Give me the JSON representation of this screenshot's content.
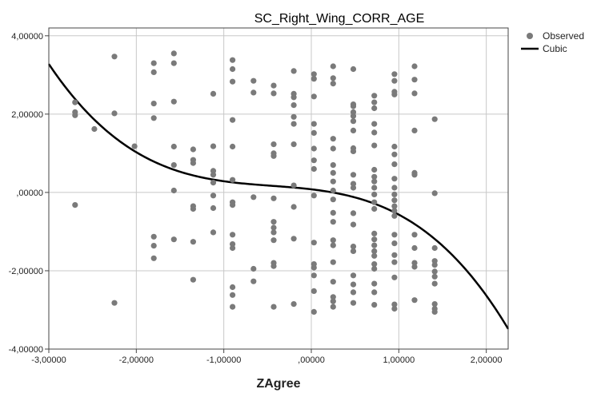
{
  "chart_data": {
    "type": "scatter",
    "title": "SC_Right_Wing_CORR_AGE",
    "xlabel": "ZAgree",
    "ylabel": "",
    "xlim": [
      -3.0,
      2.25
    ],
    "ylim": [
      -4.0,
      4.2
    ],
    "grid": true,
    "legend_position": "top-right",
    "x_ticks": [
      {
        "value": -3,
        "label": "-3,00000"
      },
      {
        "value": -2,
        "label": "-2,00000"
      },
      {
        "value": -1,
        "label": "-1,00000"
      },
      {
        "value": 0,
        "label": ",00000"
      },
      {
        "value": 1,
        "label": "1,00000"
      },
      {
        "value": 2,
        "label": "2,00000"
      }
    ],
    "y_ticks": [
      {
        "value": -4,
        "label": "-4,00000"
      },
      {
        "value": -2,
        "label": "-2,00000"
      },
      {
        "value": 0,
        "label": ",00000"
      },
      {
        "value": 2,
        "label": "2,00000"
      },
      {
        "value": 4,
        "label": "4,00000"
      }
    ],
    "colors": {
      "observed": "#7a7a7a",
      "cubic": "#000000",
      "grid": "#c8c8c8"
    },
    "series": [
      {
        "name": "Observed",
        "kind": "points",
        "points": [
          [
            -2.7,
            2.3
          ],
          [
            -2.7,
            2.05
          ],
          [
            -2.7,
            1.97
          ],
          [
            -2.7,
            -0.32
          ],
          [
            -2.48,
            1.62
          ],
          [
            -2.25,
            3.47
          ],
          [
            -2.25,
            2.02
          ],
          [
            -2.25,
            -2.82
          ],
          [
            -2.02,
            1.18
          ],
          [
            -1.8,
            3.3
          ],
          [
            -1.8,
            3.07
          ],
          [
            -1.8,
            2.27
          ],
          [
            -1.8,
            1.9
          ],
          [
            -1.8,
            -1.13
          ],
          [
            -1.8,
            -1.36
          ],
          [
            -1.8,
            -1.68
          ],
          [
            -1.57,
            3.55
          ],
          [
            -1.57,
            3.3
          ],
          [
            -1.57,
            2.32
          ],
          [
            -1.57,
            1.17
          ],
          [
            -1.57,
            0.7
          ],
          [
            -1.57,
            0.05
          ],
          [
            -1.57,
            -1.2
          ],
          [
            -1.35,
            1.1
          ],
          [
            -1.35,
            0.83
          ],
          [
            -1.35,
            0.75
          ],
          [
            -1.35,
            -0.35
          ],
          [
            -1.35,
            -0.42
          ],
          [
            -1.35,
            -1.26
          ],
          [
            -1.35,
            -2.23
          ],
          [
            -1.12,
            2.52
          ],
          [
            -1.12,
            1.18
          ],
          [
            -1.12,
            0.55
          ],
          [
            -1.12,
            0.45
          ],
          [
            -1.12,
            0.25
          ],
          [
            -1.12,
            -0.08
          ],
          [
            -1.12,
            -0.4
          ],
          [
            -1.12,
            -1.02
          ],
          [
            -0.9,
            3.38
          ],
          [
            -0.9,
            3.15
          ],
          [
            -0.9,
            2.83
          ],
          [
            -0.9,
            1.85
          ],
          [
            -0.9,
            1.17
          ],
          [
            -0.9,
            0.32
          ],
          [
            -0.9,
            -0.25
          ],
          [
            -0.9,
            -0.32
          ],
          [
            -0.9,
            -1.08
          ],
          [
            -0.9,
            -1.32
          ],
          [
            -0.9,
            -1.42
          ],
          [
            -0.9,
            -2.42
          ],
          [
            -0.9,
            -2.62
          ],
          [
            -0.9,
            -2.92
          ],
          [
            -0.66,
            2.85
          ],
          [
            -0.66,
            2.55
          ],
          [
            -0.66,
            -0.12
          ],
          [
            -0.66,
            -1.95
          ],
          [
            -0.66,
            -2.27
          ],
          [
            -0.43,
            2.73
          ],
          [
            -0.43,
            2.53
          ],
          [
            -0.43,
            1.23
          ],
          [
            -0.43,
            1.0
          ],
          [
            -0.43,
            0.93
          ],
          [
            -0.43,
            -0.15
          ],
          [
            -0.43,
            -0.75
          ],
          [
            -0.43,
            -0.9
          ],
          [
            -0.43,
            -1.02
          ],
          [
            -0.43,
            -1.22
          ],
          [
            -0.43,
            -1.8
          ],
          [
            -0.43,
            -1.88
          ],
          [
            -0.43,
            -2.92
          ],
          [
            -0.2,
            3.1
          ],
          [
            -0.2,
            2.52
          ],
          [
            -0.2,
            2.43
          ],
          [
            -0.2,
            2.23
          ],
          [
            -0.2,
            1.93
          ],
          [
            -0.2,
            1.75
          ],
          [
            -0.2,
            1.23
          ],
          [
            -0.2,
            0.18
          ],
          [
            -0.2,
            -0.37
          ],
          [
            -0.2,
            -1.18
          ],
          [
            -0.2,
            -2.85
          ],
          [
            0.03,
            3.02
          ],
          [
            0.03,
            2.9
          ],
          [
            0.03,
            2.45
          ],
          [
            0.03,
            1.75
          ],
          [
            0.03,
            1.52
          ],
          [
            0.03,
            1.12
          ],
          [
            0.03,
            0.82
          ],
          [
            0.03,
            0.6
          ],
          [
            0.03,
            -0.08
          ],
          [
            0.03,
            -1.28
          ],
          [
            0.03,
            -1.83
          ],
          [
            0.03,
            -1.92
          ],
          [
            0.03,
            -2.12
          ],
          [
            0.03,
            -2.52
          ],
          [
            0.03,
            -3.05
          ],
          [
            0.25,
            3.22
          ],
          [
            0.25,
            2.92
          ],
          [
            0.25,
            2.78
          ],
          [
            0.25,
            1.37
          ],
          [
            0.25,
            1.12
          ],
          [
            0.25,
            0.7
          ],
          [
            0.25,
            0.5
          ],
          [
            0.25,
            0.28
          ],
          [
            0.25,
            0.05
          ],
          [
            0.25,
            -0.18
          ],
          [
            0.25,
            -0.52
          ],
          [
            0.25,
            -0.75
          ],
          [
            0.25,
            -1.22
          ],
          [
            0.25,
            -1.35
          ],
          [
            0.25,
            -1.78
          ],
          [
            0.25,
            -2.28
          ],
          [
            0.25,
            -2.67
          ],
          [
            0.25,
            -2.78
          ],
          [
            0.25,
            -2.92
          ],
          [
            0.48,
            3.15
          ],
          [
            0.48,
            2.25
          ],
          [
            0.48,
            2.2
          ],
          [
            0.48,
            2.05
          ],
          [
            0.48,
            1.95
          ],
          [
            0.48,
            1.82
          ],
          [
            0.48,
            1.58
          ],
          [
            0.48,
            1.13
          ],
          [
            0.48,
            1.05
          ],
          [
            0.48,
            0.45
          ],
          [
            0.48,
            0.22
          ],
          [
            0.48,
            0.12
          ],
          [
            0.48,
            -0.53
          ],
          [
            0.48,
            -0.82
          ],
          [
            0.48,
            -1.38
          ],
          [
            0.48,
            -1.5
          ],
          [
            0.48,
            -2.12
          ],
          [
            0.48,
            -2.35
          ],
          [
            0.48,
            -2.55
          ],
          [
            0.48,
            -2.82
          ],
          [
            0.72,
            2.47
          ],
          [
            0.72,
            2.3
          ],
          [
            0.72,
            2.15
          ],
          [
            0.72,
            1.75
          ],
          [
            0.72,
            1.53
          ],
          [
            0.72,
            1.2
          ],
          [
            0.72,
            0.58
          ],
          [
            0.72,
            0.4
          ],
          [
            0.72,
            0.28
          ],
          [
            0.72,
            0.12
          ],
          [
            0.72,
            -0.05
          ],
          [
            0.72,
            -0.25
          ],
          [
            0.72,
            -0.42
          ],
          [
            0.72,
            -1.05
          ],
          [
            0.72,
            -1.2
          ],
          [
            0.72,
            -1.35
          ],
          [
            0.72,
            -1.5
          ],
          [
            0.72,
            -1.62
          ],
          [
            0.72,
            -1.83
          ],
          [
            0.72,
            -1.95
          ],
          [
            0.72,
            -2.33
          ],
          [
            0.72,
            -2.55
          ],
          [
            0.72,
            -2.87
          ],
          [
            0.95,
            3.02
          ],
          [
            0.95,
            2.85
          ],
          [
            0.95,
            2.57
          ],
          [
            0.95,
            2.5
          ],
          [
            0.95,
            1.17
          ],
          [
            0.95,
            0.97
          ],
          [
            0.95,
            0.72
          ],
          [
            0.95,
            0.35
          ],
          [
            0.95,
            0.12
          ],
          [
            0.95,
            -0.05
          ],
          [
            0.95,
            -0.2
          ],
          [
            0.95,
            -0.35
          ],
          [
            0.95,
            -0.47
          ],
          [
            0.95,
            -0.6
          ],
          [
            0.95,
            -1.08
          ],
          [
            0.95,
            -1.3
          ],
          [
            0.95,
            -1.6
          ],
          [
            0.95,
            -1.78
          ],
          [
            0.95,
            -2.17
          ],
          [
            0.95,
            -2.86
          ],
          [
            0.95,
            -2.97
          ],
          [
            1.18,
            3.22
          ],
          [
            1.18,
            2.88
          ],
          [
            1.18,
            2.53
          ],
          [
            1.18,
            1.58
          ],
          [
            1.18,
            0.5
          ],
          [
            1.18,
            0.45
          ],
          [
            1.18,
            -1.08
          ],
          [
            1.18,
            -1.42
          ],
          [
            1.18,
            -1.8
          ],
          [
            1.18,
            -1.9
          ],
          [
            1.18,
            -2.75
          ],
          [
            1.41,
            1.87
          ],
          [
            1.41,
            -0.02
          ],
          [
            1.41,
            -1.42
          ],
          [
            1.41,
            -1.75
          ],
          [
            1.41,
            -1.85
          ],
          [
            1.41,
            -2.02
          ],
          [
            1.41,
            -2.15
          ],
          [
            1.41,
            -2.33
          ],
          [
            1.41,
            -2.85
          ],
          [
            1.41,
            -2.97
          ],
          [
            1.41,
            -3.05
          ]
        ]
      },
      {
        "name": "Cubic",
        "kind": "curve",
        "coefficients": {
          "b0": 0.08,
          "b1": -0.264,
          "b2": -0.2207,
          "b3": -0.1627
        }
      }
    ]
  }
}
